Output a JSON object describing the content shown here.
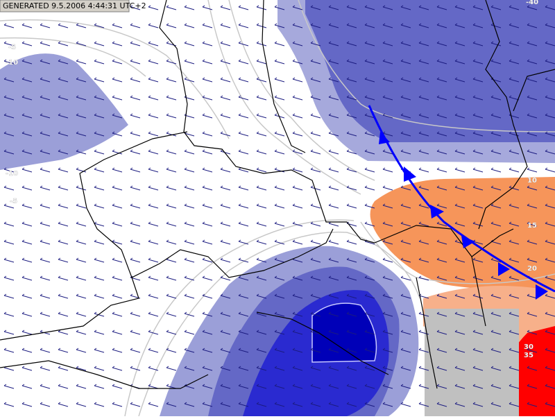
{
  "header": {
    "generated": "GENERATED 9.5.2006 4:44:31 UTC+2"
  },
  "contour_labels": [
    {
      "text": "-5"
    },
    {
      "text": "-10"
    },
    {
      "text": "-10"
    },
    {
      "text": "-5"
    },
    {
      "text": "-40"
    },
    {
      "text": "10"
    },
    {
      "text": "15"
    },
    {
      "text": "20"
    },
    {
      "text": "30"
    },
    {
      "text": "35"
    }
  ]
}
